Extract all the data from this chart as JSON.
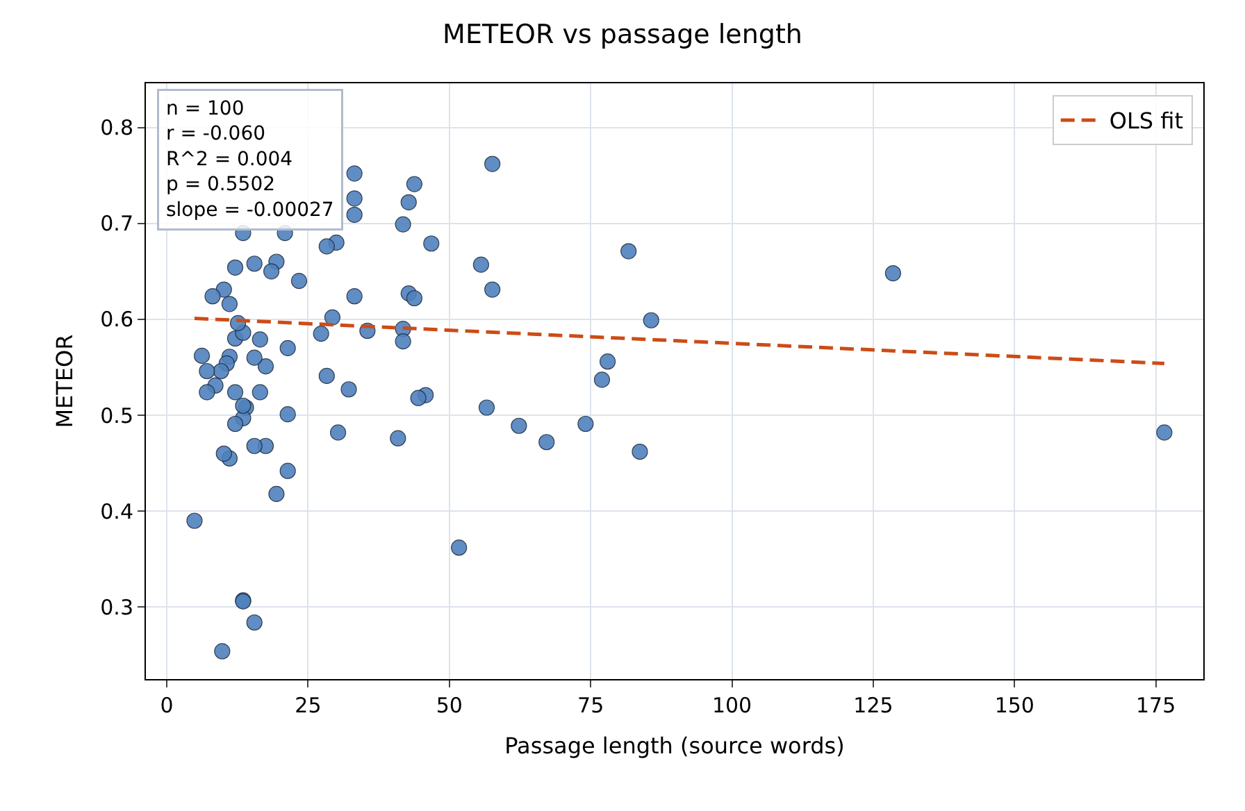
{
  "chart_data": {
    "type": "scatter",
    "title": "METEOR vs passage length",
    "xlabel": "Passage length (source words)",
    "ylabel": "METEOR",
    "annotations": [
      "n = 100",
      "r = -0.060",
      "R^2 = 0.004",
      "p = 0.5502",
      "slope = -0.00027"
    ],
    "xlim": [
      -3.7,
      183.4
    ],
    "ylim": [
      0.225,
      0.846
    ],
    "xticks": [
      0,
      25,
      50,
      75,
      100,
      125,
      150,
      175
    ],
    "yticks": [
      0.3,
      0.4,
      0.5,
      0.6,
      0.7,
      0.8
    ],
    "grid": true,
    "legend": "top right",
    "marker": "circle",
    "series": [
      {
        "color": "#4f81bd",
        "x": [
          176.5,
          128.5,
          81.7,
          85.7,
          78.0,
          77.0,
          83.7,
          74.1,
          67.2,
          62.3,
          56.6,
          57.6,
          55.6,
          57.6,
          51.7,
          46.8,
          43.8,
          42.8,
          41.8,
          42.8,
          43.8,
          41.8,
          41.8,
          45.8,
          44.5,
          40.9,
          35.5,
          33.2,
          32.2,
          30.3,
          29.3,
          28.3,
          27.3,
          23.4,
          21.4,
          21.4,
          21.4,
          19.4,
          19.4,
          18.5,
          15.5,
          12.1,
          16.5,
          17.5,
          15.5,
          16.5,
          17.5,
          15.5,
          14.0,
          13.5,
          13.5,
          12.1,
          12.1,
          12.1,
          13.5,
          12.6,
          11.1,
          10.6,
          11.1,
          10.1,
          9.6,
          8.6,
          7.1,
          7.1,
          6.2,
          4.9,
          11.1,
          10.1,
          8.1,
          13.5,
          13.5,
          15.5,
          9.8,
          13.5,
          33.2,
          33.2,
          33.2,
          30.0,
          28.3,
          20.9
        ],
        "values": [
          0.482,
          0.648,
          0.671,
          0.599,
          0.556,
          0.537,
          0.462,
          0.491,
          0.472,
          0.489,
          0.508,
          0.631,
          0.657,
          0.762,
          0.362,
          0.679,
          0.741,
          0.722,
          0.699,
          0.627,
          0.622,
          0.59,
          0.577,
          0.521,
          0.518,
          0.476,
          0.588,
          0.624,
          0.527,
          0.482,
          0.602,
          0.541,
          0.585,
          0.64,
          0.57,
          0.501,
          0.442,
          0.418,
          0.66,
          0.65,
          0.658,
          0.654,
          0.579,
          0.551,
          0.56,
          0.524,
          0.468,
          0.468,
          0.508,
          0.497,
          0.51,
          0.491,
          0.524,
          0.58,
          0.586,
          0.596,
          0.561,
          0.554,
          0.455,
          0.46,
          0.546,
          0.531,
          0.524,
          0.546,
          0.562,
          0.39,
          0.616,
          0.631,
          0.624,
          0.307,
          0.306,
          0.284,
          0.254,
          0.69,
          0.752,
          0.726,
          0.709,
          0.68,
          0.676,
          0.69
        ]
      },
      {
        "type": "line",
        "name": "OLS fit",
        "color": "#cc4c16",
        "line_style": "dashed",
        "marker": "none",
        "x": [
          4.9,
          176.5
        ],
        "values": [
          0.601,
          0.554
        ]
      }
    ]
  }
}
